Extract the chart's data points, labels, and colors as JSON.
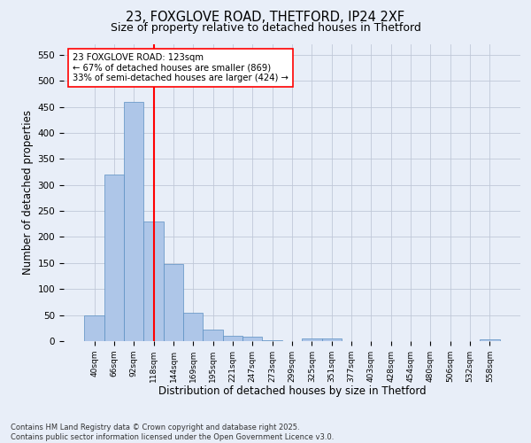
{
  "title1": "23, FOXGLOVE ROAD, THETFORD, IP24 2XF",
  "title2": "Size of property relative to detached houses in Thetford",
  "xlabel": "Distribution of detached houses by size in Thetford",
  "ylabel": "Number of detached properties",
  "categories": [
    "40sqm",
    "66sqm",
    "92sqm",
    "118sqm",
    "144sqm",
    "169sqm",
    "195sqm",
    "221sqm",
    "247sqm",
    "273sqm",
    "299sqm",
    "325sqm",
    "351sqm",
    "377sqm",
    "403sqm",
    "428sqm",
    "454sqm",
    "480sqm",
    "506sqm",
    "532sqm",
    "558sqm"
  ],
  "values": [
    50,
    320,
    460,
    230,
    148,
    55,
    22,
    10,
    8,
    2,
    0,
    5,
    5,
    0,
    0,
    0,
    0,
    0,
    0,
    0,
    3
  ],
  "bar_color": "#aec6e8",
  "bar_edge_color": "#5a8fc2",
  "vline_x_index": 3,
  "vline_color": "red",
  "annotation_text": "23 FOXGLOVE ROAD: 123sqm\n← 67% of detached houses are smaller (869)\n33% of semi-detached houses are larger (424) →",
  "annotation_box_color": "white",
  "annotation_box_edge": "red",
  "ylim": [
    0,
    570
  ],
  "yticks": [
    0,
    50,
    100,
    150,
    200,
    250,
    300,
    350,
    400,
    450,
    500,
    550
  ],
  "footer": "Contains HM Land Registry data © Crown copyright and database right 2025.\nContains public sector information licensed under the Open Government Licence v3.0.",
  "bg_color": "#e8eef8",
  "grid_color": "#c0c8d8"
}
